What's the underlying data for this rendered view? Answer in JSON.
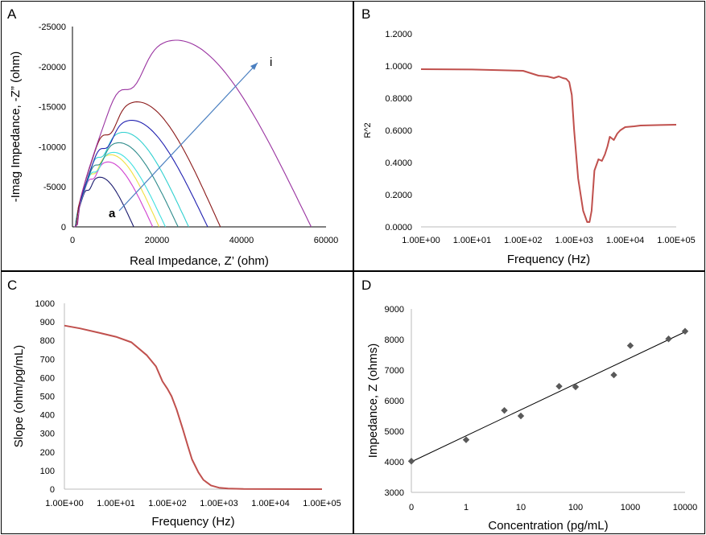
{
  "chart_data": [
    {
      "panel": "A",
      "type": "line",
      "xlabel": "Real Impedance, Z’  (ohm)",
      "ylabel": "-Imag  Impedance, -Z” (ohm)",
      "xlim": [
        0,
        60000
      ],
      "ylim": [
        0,
        -25000
      ],
      "xticks": [
        "0",
        "20000",
        "40000",
        "60000"
      ],
      "yticks": [
        "0",
        "-5000",
        "-10000",
        "-15000",
        "-20000",
        "-25000"
      ],
      "annotations": [
        {
          "text": "a"
        },
        {
          "text": "i"
        }
      ],
      "colors": [
        "#1a1a6e",
        "#d040d0",
        "#f0e040",
        "#40e0e0",
        "#2e8b8b",
        "#30d0d0",
        "#2020b0",
        "#8b1a1a",
        "#9932a0"
      ],
      "series": [
        {
          "xmax": 14500,
          "peak_x": 8500,
          "peak_y": -6200
        },
        {
          "xmax": 19000,
          "peak_x": 10000,
          "peak_y": -8100
        },
        {
          "xmax": 20500,
          "peak_x": 11000,
          "peak_y": -9000
        },
        {
          "xmax": 22000,
          "peak_x": 11500,
          "peak_y": -9300
        },
        {
          "xmax": 25000,
          "peak_x": 13000,
          "peak_y": -10500
        },
        {
          "xmax": 27500,
          "peak_x": 14500,
          "peak_y": -11800
        },
        {
          "xmax": 32000,
          "peak_x": 16500,
          "peak_y": -13300
        },
        {
          "xmax": 35000,
          "peak_x": 18000,
          "peak_y": -15600
        },
        {
          "xmax": 56500,
          "peak_x": 27000,
          "peak_y": -23300
        }
      ]
    },
    {
      "panel": "B",
      "type": "line",
      "xlabel": "Frequency (Hz)",
      "ylabel": "R^2",
      "xscale": "log",
      "ylim": [
        0,
        1.2
      ],
      "xticks": [
        "1.00E+00",
        "1.00E+01",
        "1.00E+02",
        "1.00E+03",
        "1.00E+04",
        "1.00E+05"
      ],
      "yticks": [
        "0.0000",
        "0.2000",
        "0.4000",
        "0.6000",
        "0.8000",
        "1.0000",
        "1.2000"
      ],
      "color": "#c0504d",
      "x": [
        1,
        10,
        100,
        200,
        300,
        400,
        500,
        600,
        700,
        800,
        900,
        1000,
        1200,
        1500,
        1800,
        2000,
        2200,
        2500,
        3000,
        3500,
        4000,
        4500,
        5000,
        6000,
        7000,
        8000,
        10000,
        15000,
        20000,
        50000,
        100000
      ],
      "y": [
        0.98,
        0.978,
        0.97,
        0.94,
        0.935,
        0.925,
        0.935,
        0.925,
        0.92,
        0.9,
        0.82,
        0.6,
        0.3,
        0.1,
        0.03,
        0.03,
        0.1,
        0.35,
        0.42,
        0.41,
        0.45,
        0.5,
        0.56,
        0.54,
        0.58,
        0.6,
        0.62,
        0.625,
        0.63,
        0.633,
        0.635
      ]
    },
    {
      "panel": "C",
      "type": "line",
      "xlabel": "Frequency (Hz)",
      "ylabel": "Slope (ohm/pg/mL)",
      "xscale": "log",
      "ylim": [
        0,
        1000
      ],
      "xticks": [
        "1.00E+00",
        "1.00E+01",
        "1.00E+02",
        "1.00E+03",
        "1.00E+04",
        "1.00E+05"
      ],
      "yticks": [
        "0",
        "100",
        "200",
        "300",
        "400",
        "500",
        "600",
        "700",
        "800",
        "900",
        "1000"
      ],
      "color": "#c0504d",
      "x": [
        1,
        2,
        5,
        10,
        20,
        40,
        60,
        80,
        100,
        120,
        150,
        200,
        250,
        300,
        400,
        500,
        700,
        1000,
        1500,
        3000,
        100000
      ],
      "y": [
        880,
        865,
        840,
        820,
        790,
        720,
        660,
        580,
        540,
        500,
        430,
        320,
        230,
        160,
        90,
        50,
        20,
        8,
        3,
        1,
        0
      ]
    },
    {
      "panel": "D",
      "type": "scatter",
      "xlabel": "Concentration (pg/mL)",
      "ylabel": "Impedance, Z (ohms)",
      "xscale": "log",
      "ylim": [
        3000,
        9000
      ],
      "xticks": [
        "0",
        "1",
        "10",
        "100",
        "1000",
        "10000"
      ],
      "yticks": [
        "3000",
        "4000",
        "5000",
        "6000",
        "7000",
        "8000",
        "9000"
      ],
      "trendline": {
        "from": [
          0,
          4000
        ],
        "to": [
          10000,
          8250
        ]
      },
      "color": "#595959",
      "points": [
        {
          "x": 0,
          "y": 4020
        },
        {
          "x": 1,
          "y": 4720
        },
        {
          "x": 5,
          "y": 5680
        },
        {
          "x": 10,
          "y": 5500
        },
        {
          "x": 50,
          "y": 6470
        },
        {
          "x": 100,
          "y": 6450
        },
        {
          "x": 500,
          "y": 6840
        },
        {
          "x": 1000,
          "y": 7800
        },
        {
          "x": 5000,
          "y": 8020
        },
        {
          "x": 10000,
          "y": 8270
        }
      ]
    }
  ],
  "panel_labels": {
    "a": "A",
    "b": "B",
    "c": "C",
    "d": "D"
  }
}
